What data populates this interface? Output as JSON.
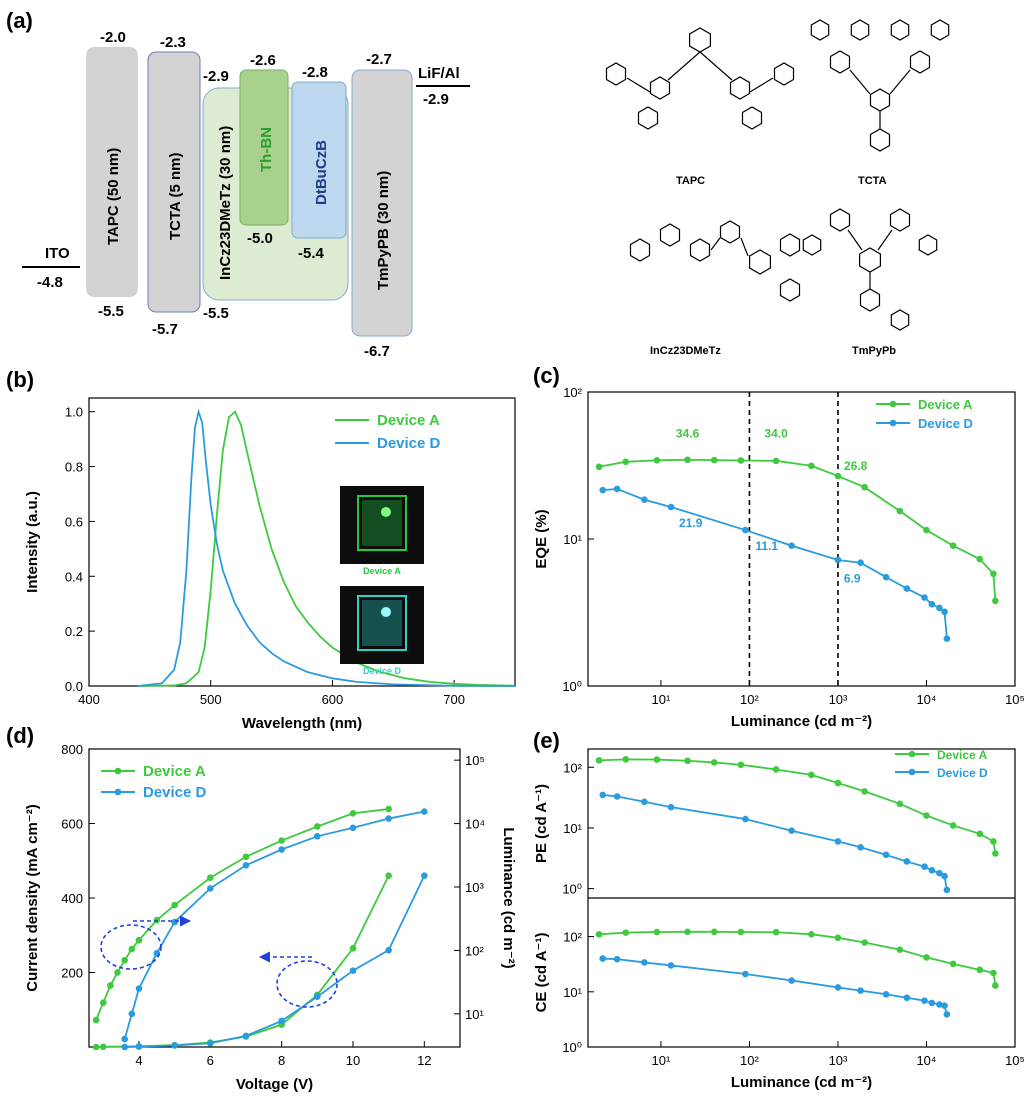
{
  "panels": {
    "a": "(a)",
    "b": "(b)",
    "c": "(c)",
    "d": "(d)",
    "e": "(e)"
  },
  "energy_diagram": {
    "layers": [
      {
        "name": "ITO",
        "levels": [
          "-4.8"
        ]
      },
      {
        "name": "TAPC (50 nm)",
        "levels": [
          "-2.0",
          "-5.5"
        ]
      },
      {
        "name": "TCTA (5 nm)",
        "levels": [
          "-2.3",
          "-5.7"
        ]
      },
      {
        "name": "InCz23DMeTz (30 nm)",
        "levels": [
          "-2.9",
          "-5.5"
        ]
      },
      {
        "name": "Th-BN",
        "levels": [
          "-2.6",
          "-5.0"
        ]
      },
      {
        "name": "DtBuCzB",
        "levels": [
          "-2.8",
          "-5.4"
        ]
      },
      {
        "name": "TmPyPB (30 nm)",
        "levels": [
          "-2.7",
          "-6.7"
        ]
      },
      {
        "name": "LiF/Al",
        "levels": [
          "-2.9"
        ]
      }
    ],
    "colors": {
      "gray": "#d3d3d3",
      "green_host": "#dcecd2",
      "green_dopant": "#a9d18e",
      "blue_dopant": "#bdd7ee",
      "th_bn_text": "#2ca02c",
      "dtbuczb_text": "#1f3a8a"
    }
  },
  "molecules": [
    "TAPC",
    "TCTA",
    "InCz23DMeTz",
    "TmPyPb"
  ],
  "insets": [
    "Device A",
    "Device D"
  ],
  "chart_data": [
    {
      "id": "b",
      "type": "line",
      "xlabel": "Wavelength (nm)",
      "ylabel": "Intensity (a.u.)",
      "xlim": [
        400,
        750
      ],
      "ylim": [
        0,
        1.05
      ],
      "xticks": [
        "400",
        "500",
        "600",
        "700"
      ],
      "yticks": [
        "0.0",
        "0.2",
        "0.4",
        "0.6",
        "0.8",
        "1.0"
      ],
      "legend_position": "top-right",
      "series": [
        {
          "name": "Device A",
          "color": "#3ec93e",
          "x": [
            440,
            470,
            480,
            490,
            495,
            500,
            505,
            510,
            515,
            520,
            525,
            530,
            540,
            550,
            560,
            570,
            580,
            590,
            600,
            620,
            640,
            660,
            680,
            700,
            720,
            750
          ],
          "y": [
            0,
            0.002,
            0.01,
            0.05,
            0.14,
            0.35,
            0.62,
            0.86,
            0.98,
            1.0,
            0.95,
            0.85,
            0.66,
            0.5,
            0.38,
            0.29,
            0.23,
            0.18,
            0.14,
            0.085,
            0.05,
            0.028,
            0.015,
            0.008,
            0.004,
            0.001
          ]
        },
        {
          "name": "Device D",
          "color": "#2b9be0",
          "x": [
            440,
            460,
            470,
            475,
            480,
            484,
            487,
            490,
            493,
            496,
            500,
            505,
            510,
            520,
            530,
            540,
            550,
            560,
            580,
            600,
            620,
            650,
            700,
            750
          ],
          "y": [
            0,
            0.01,
            0.06,
            0.16,
            0.42,
            0.75,
            0.94,
            1.0,
            0.96,
            0.82,
            0.66,
            0.52,
            0.42,
            0.3,
            0.22,
            0.16,
            0.12,
            0.09,
            0.05,
            0.028,
            0.015,
            0.006,
            0.001,
            0
          ]
        }
      ]
    },
    {
      "id": "c",
      "type": "line",
      "xlabel": "Luminance (cd m⁻²)",
      "ylabel": "EQE (%)",
      "xscale": "log",
      "yscale": "log",
      "xlim": [
        1.5,
        100000
      ],
      "ylim": [
        1,
        100
      ],
      "xticks": [
        "10¹",
        "10²",
        "10³",
        "10⁴",
        "10⁵"
      ],
      "yticks": [
        "10⁰",
        "10¹",
        "10²"
      ],
      "vlines": [
        100,
        1000
      ],
      "legend_position": "top-right",
      "series": [
        {
          "name": "Device A",
          "color": "#3ec93e",
          "x": [
            2,
            4,
            9,
            20,
            40,
            80,
            200,
            500,
            1000,
            2000,
            5000,
            10000,
            20000,
            40000,
            57000,
            60000
          ],
          "y": [
            31,
            33.5,
            34.3,
            34.6,
            34.4,
            34.2,
            34.0,
            31.5,
            26.8,
            22.5,
            15.5,
            11.5,
            9.0,
            7.3,
            5.8,
            3.8
          ]
        },
        {
          "name": "Device D",
          "color": "#2b9be0",
          "x": [
            2.2,
            3.2,
            6.5,
            13,
            90,
            300,
            1000,
            1800,
            3500,
            6000,
            9500,
            11500,
            14000,
            16000,
            17000
          ],
          "y": [
            21.5,
            21.9,
            18.5,
            16.5,
            11.5,
            9.0,
            7.2,
            6.9,
            5.5,
            4.6,
            4.0,
            3.6,
            3.4,
            3.2,
            2.1
          ]
        }
      ],
      "annotations": [
        {
          "text": "34.6",
          "series": "Device A"
        },
        {
          "text": "34.0",
          "series": "Device A"
        },
        {
          "text": "26.8",
          "series": "Device A"
        },
        {
          "text": "21.9",
          "series": "Device D"
        },
        {
          "text": "11.1",
          "series": "Device D"
        },
        {
          "text": "6.9",
          "series": "Device D"
        }
      ]
    },
    {
      "id": "d",
      "type": "line",
      "xlabel": "Voltage (V)",
      "ylabel": "Current density (mA cm⁻²)",
      "ylabel_right": "Luminance (cd m⁻²)",
      "xlim": [
        2.6,
        13
      ],
      "ylim": [
        0,
        800
      ],
      "y2scale": "log",
      "y2lim": [
        3,
        150000
      ],
      "xticks": [
        "4",
        "6",
        "8",
        "10",
        "12"
      ],
      "yticks": [
        "200",
        "400",
        "600",
        "800"
      ],
      "y2ticks": [
        "10¹",
        "10²",
        "10³",
        "10⁴",
        "10⁵"
      ],
      "legend_position": "top-left",
      "series": [
        {
          "name": "Device A",
          "color": "#3ec93e",
          "axis": "luminance",
          "x": [
            2.8,
            3.0,
            3.2,
            3.4,
            3.6,
            3.8,
            4.0,
            4.5,
            5.0,
            6.0,
            7.0,
            8.0,
            9.0,
            10.0,
            11.0
          ],
          "y": [
            8,
            15,
            28,
            45,
            70,
            105,
            145,
            300,
            520,
            1400,
            3000,
            5400,
            9000,
            14500,
            17000
          ]
        },
        {
          "name": "Device D",
          "color": "#2b9be0",
          "axis": "luminance",
          "x": [
            3.6,
            3.8,
            4.0,
            4.5,
            5.0,
            6.0,
            7.0,
            8.0,
            9.0,
            10.0,
            11.0,
            12.0
          ],
          "y": [
            4,
            10,
            25,
            90,
            280,
            950,
            2200,
            3900,
            6300,
            8600,
            12000,
            15500
          ]
        },
        {
          "name": "Device A current",
          "color": "#3ec93e",
          "axis": "current",
          "x": [
            2.8,
            3,
            4,
            5,
            6,
            7,
            8,
            9,
            10,
            11
          ],
          "y": [
            0,
            0.5,
            2,
            5,
            12,
            28,
            60,
            140,
            265,
            460
          ]
        },
        {
          "name": "Device D current",
          "color": "#2b9be0",
          "axis": "current",
          "x": [
            3.6,
            4,
            5,
            6,
            7,
            8,
            9,
            10,
            11,
            12
          ],
          "y": [
            0,
            1,
            4,
            10,
            30,
            70,
            135,
            205,
            260,
            460
          ]
        }
      ]
    },
    {
      "id": "e",
      "type": "line",
      "xlabel": "Luminance (cd m⁻²)",
      "xscale": "log",
      "xlim": [
        1.5,
        100000
      ],
      "xticks": [
        "10¹",
        "10²",
        "10³",
        "10⁴",
        "10⁵"
      ],
      "subplots": [
        {
          "ylabel": "PE (cd A⁻¹)",
          "yscale": "log",
          "ylim": [
            0.7,
            200
          ],
          "yticks": [
            "10⁰",
            "10¹",
            "10²"
          ],
          "legend_position": "top-right",
          "series": [
            {
              "name": "Device A",
              "color": "#3ec93e",
              "x": [
                2,
                4,
                9,
                20,
                40,
                80,
                200,
                500,
                1000,
                2000,
                5000,
                10000,
                20000,
                40000,
                57000,
                60000
              ],
              "y": [
                130,
                135,
                134,
                128,
                120,
                110,
                92,
                75,
                55,
                40,
                25,
                16,
                11,
                8,
                6,
                3.8
              ]
            },
            {
              "name": "Device D",
              "color": "#2b9be0",
              "x": [
                2.2,
                3.2,
                6.5,
                13,
                90,
                300,
                1000,
                1800,
                3500,
                6000,
                9500,
                11500,
                14000,
                16000,
                17000
              ],
              "y": [
                35,
                33,
                27,
                22,
                14,
                9,
                6,
                4.8,
                3.6,
                2.8,
                2.3,
                2.0,
                1.8,
                1.6,
                0.95
              ]
            }
          ]
        },
        {
          "ylabel": "CE (cd A⁻¹)",
          "yscale": "log",
          "ylim": [
            1,
            500
          ],
          "yticks": [
            "10⁰",
            "10¹",
            "10²"
          ],
          "series": [
            {
              "name": "Device A",
              "x": [
                2,
                4,
                9,
                20,
                40,
                80,
                200,
                500,
                1000,
                2000,
                5000,
                10000,
                20000,
                40000,
                57000,
                60000
              ],
              "y": [
                110,
                118,
                121,
                122,
                122,
                121,
                120,
                110,
                95,
                78,
                58,
                42,
                32,
                25,
                22,
                13
              ]
            },
            {
              "name": "Device D",
              "x": [
                2.2,
                3.2,
                6.5,
                13,
                90,
                300,
                1000,
                1800,
                3500,
                6000,
                9500,
                11500,
                14000,
                16000,
                17000
              ],
              "y": [
                40,
                39,
                34,
                30,
                21,
                16,
                12,
                10.5,
                9,
                7.8,
                6.9,
                6.3,
                5.9,
                5.6,
                3.9
              ]
            }
          ]
        }
      ]
    }
  ]
}
